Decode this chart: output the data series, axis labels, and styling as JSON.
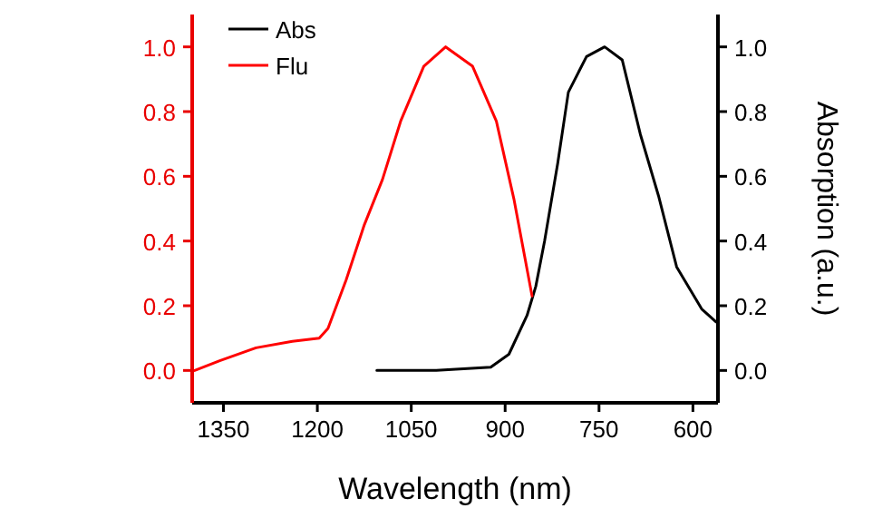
{
  "chart_data": {
    "type": "line",
    "xlabel": "Wavelength (nm)",
    "y2label": "Absorption (a.u.)",
    "xlim": [
      1400,
      560
    ],
    "xticks": [
      1350,
      1200,
      1050,
      900,
      750,
      600
    ],
    "ylim": [
      -0.1,
      1.1
    ],
    "yticks": [
      {
        "value": 0,
        "label": "0.0"
      },
      {
        "value": 0.2,
        "label": "0.2"
      },
      {
        "value": 0.4,
        "label": "0.4"
      },
      {
        "value": 0.6,
        "label": "0.6"
      },
      {
        "value": 0.8,
        "label": "0.8"
      },
      {
        "value": 1,
        "label": "1.0"
      }
    ],
    "y2lim": [
      -0.1,
      1.1
    ],
    "y2ticks": [
      {
        "value": 0,
        "label": "0.0"
      },
      {
        "value": 0.2,
        "label": "0.2"
      },
      {
        "value": 0.4,
        "label": "0.4"
      },
      {
        "value": 0.6,
        "label": "0.6"
      },
      {
        "value": 0.8,
        "label": "0.8"
      },
      {
        "value": 1,
        "label": "1.0"
      }
    ],
    "legend": "top left",
    "grid": false,
    "series": [
      {
        "name": "Abs",
        "color": "#000000",
        "axis": "y2",
        "x": [
          1105,
          1010,
          923,
          894,
          865,
          851,
          837,
          816,
          799,
          770,
          741,
          713,
          684,
          655,
          626,
          586,
          563
        ],
        "values": [
          0,
          0,
          0.01,
          0.05,
          0.17,
          0.26,
          0.4,
          0.64,
          0.86,
          0.97,
          1.0,
          0.96,
          0.73,
          0.54,
          0.32,
          0.19,
          0.15
        ]
      },
      {
        "name": "Flu",
        "color": "#ff0000",
        "x": [
          1396,
          1356,
          1298,
          1240,
          1197,
          1183,
          1154,
          1125,
          1096,
          1067,
          1030,
          995,
          952,
          914,
          886,
          857
        ],
        "values": [
          0,
          0.03,
          0.07,
          0.09,
          0.1,
          0.13,
          0.28,
          0.45,
          0.59,
          0.77,
          0.94,
          1.0,
          0.94,
          0.77,
          0.53,
          0.23
        ]
      }
    ]
  }
}
